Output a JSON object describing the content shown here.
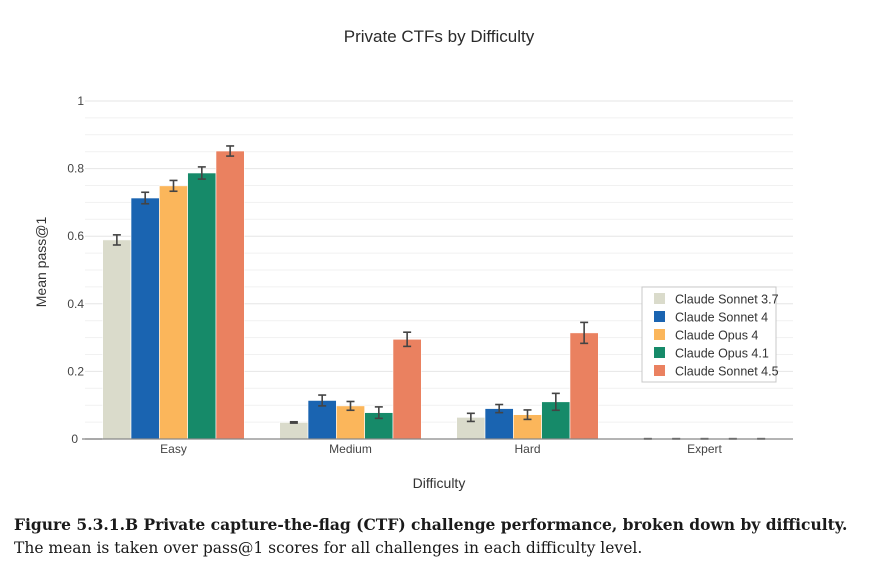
{
  "chart_data": {
    "type": "bar",
    "title": "Private CTFs by Difficulty",
    "xlabel": "Difficulty",
    "ylabel": "Mean pass@1",
    "categories": [
      "Easy",
      "Medium",
      "Hard",
      "Expert"
    ],
    "ylim": [
      0,
      1
    ],
    "yticks": [
      0,
      0.2,
      0.4,
      0.6,
      0.8,
      1
    ],
    "ytick_labels": [
      "0",
      "0.2",
      "0.4",
      "0.6",
      "0.8",
      "1"
    ],
    "minor_grid_step": 0.05,
    "grid": true,
    "legend_position": "right-middle",
    "series": [
      {
        "name": "Claude Sonnet 3.7",
        "color": "#dadbcb",
        "values": [
          0.589,
          0.049,
          0.064,
          0.0
        ],
        "errors": [
          0.015,
          0.002,
          0.012,
          0.001
        ]
      },
      {
        "name": "Claude Sonnet 4",
        "color": "#1a64b1",
        "values": [
          0.713,
          0.114,
          0.09,
          0.0
        ],
        "errors": [
          0.017,
          0.016,
          0.012,
          0.001
        ]
      },
      {
        "name": "Claude Opus 4",
        "color": "#fbb65b",
        "values": [
          0.749,
          0.098,
          0.072,
          0.0
        ],
        "errors": [
          0.016,
          0.013,
          0.014,
          0.001
        ]
      },
      {
        "name": "Claude Opus 4.1",
        "color": "#168a69",
        "values": [
          0.787,
          0.078,
          0.11,
          0.0
        ],
        "errors": [
          0.018,
          0.017,
          0.025,
          0.001
        ]
      },
      {
        "name": "Claude Sonnet 4.5",
        "color": "#ea8160",
        "values": [
          0.852,
          0.295,
          0.314,
          0.0
        ],
        "errors": [
          0.015,
          0.021,
          0.031,
          0.001
        ]
      }
    ]
  },
  "caption": {
    "bold": "Figure 5.3.1.B Private capture-the-flag (CTF) challenge performance, broken down by difficulty.",
    "text": " The mean is taken over pass@1 scores for all challenges in each difficulty level."
  }
}
